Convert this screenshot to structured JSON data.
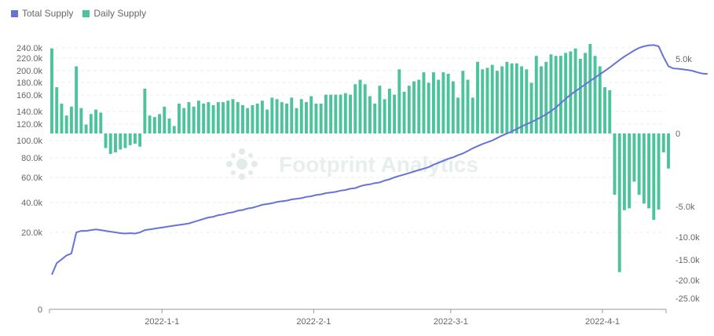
{
  "colors": {
    "total": "#6674d8",
    "daily": "#4cc39b",
    "axis": "#666666",
    "grid": "#eeeeee"
  },
  "legend": {
    "total_label": "Total Supply",
    "daily_label": "Daily Supply"
  },
  "watermark": {
    "text": "Footprint Analytics"
  },
  "chart_data": {
    "type": "bar+line",
    "x_tick_labels": [
      "2022-1-1",
      "2022-2-1",
      "2022-3-1",
      "2022-4-1"
    ],
    "x_range": [
      "2021-12-09",
      "2022-04-14"
    ],
    "left_axis": {
      "tick_labels": [
        "0",
        "20.0k",
        "40.0k",
        "60.0k",
        "80.0k",
        "100.0k",
        "120.0k",
        "140.0k",
        "160.0k",
        "180.0k",
        "200.0k",
        "220.0k",
        "240.0k"
      ],
      "tick_values": [
        0,
        20000,
        40000,
        60000,
        80000,
        100000,
        120000,
        140000,
        160000,
        180000,
        200000,
        220000,
        240000
      ],
      "scale": "non-linear (expanded near top)"
    },
    "right_axis": {
      "tick_labels": [
        "5.0k",
        "0",
        "-5.0k",
        "-10.0k",
        "-15.0k",
        "-20.0k",
        "-25.0k"
      ],
      "tick_values": [
        5000,
        0,
        -5000,
        -10000,
        -15000,
        -20000,
        -25000
      ],
      "scale": "non-linear"
    },
    "series": [
      {
        "name": "Total Supply",
        "type": "line",
        "axis": "left",
        "start_date": "2021-12-09",
        "values": [
          9000,
          12000,
          13000,
          14000,
          14500,
          20000,
          21000,
          21000,
          21500,
          22000,
          21500,
          21000,
          20500,
          20000,
          19800,
          19700,
          19800,
          19700,
          20000,
          21500,
          22000,
          22500,
          23000,
          23500,
          24000,
          24500,
          25000,
          25500,
          26000,
          27000,
          28000,
          29000,
          30000,
          30500,
          31500,
          32000,
          33000,
          33500,
          34500,
          35000,
          36000,
          36500,
          37500,
          38500,
          39000,
          39500,
          40500,
          41000,
          41500,
          42500,
          43000,
          43500,
          44500,
          45000,
          46000,
          46500,
          47500,
          48000,
          48500,
          49500,
          50000,
          51000,
          51500,
          53000,
          54000,
          54500,
          55500,
          56000,
          57500,
          58500,
          60000,
          61500,
          63000,
          64500,
          66000,
          67500,
          69000,
          70500,
          73000,
          75000,
          77000,
          79000,
          80500,
          83000,
          85000,
          88000,
          91000,
          93500,
          96000,
          98000,
          100000,
          103000,
          106000,
          108500,
          111000,
          114000,
          117000,
          120000,
          123000,
          127000,
          131000,
          135500,
          140500,
          145000,
          150000,
          155500,
          160500,
          166000,
          171500,
          177000,
          182500,
          188000,
          194000,
          199500,
          205000,
          211000,
          217000,
          223000,
          229000,
          235000,
          240000,
          243000,
          245000,
          245500,
          243000,
          222000,
          207000,
          203500,
          203000,
          202000,
          201000,
          199500,
          197000,
          195000,
          194500
        ]
      },
      {
        "name": "Daily Supply",
        "type": "bar",
        "axis": "right",
        "start_date": "2021-12-09",
        "values": [
          5700,
          3100,
          2000,
          1200,
          1800,
          4500,
          1700,
          600,
          1300,
          1600,
          1400,
          -1000,
          -1400,
          -1300,
          -1100,
          -1000,
          -800,
          -700,
          -900,
          3000,
          1200,
          1100,
          1300,
          1800,
          1000,
          500,
          2000,
          1700,
          2100,
          1800,
          2200,
          2000,
          2100,
          1900,
          2100,
          2100,
          2200,
          2300,
          2100,
          1900,
          1700,
          1900,
          2000,
          2200,
          1600,
          2400,
          2300,
          2100,
          2000,
          2400,
          1700,
          2300,
          2100,
          2500,
          2000,
          2000,
          2600,
          2600,
          2600,
          2600,
          2700,
          2600,
          3300,
          3600,
          3300,
          2500,
          2000,
          3200,
          2300,
          3000,
          2600,
          4300,
          2800,
          3200,
          3500,
          3600,
          4100,
          3400,
          4100,
          3600,
          4100,
          4000,
          3500,
          2400,
          4200,
          3600,
          2400,
          4800,
          4300,
          4400,
          4600,
          4200,
          4500,
          4800,
          4700,
          4700,
          4500,
          4300,
          3400,
          5200,
          4500,
          4800,
          5300,
          5200,
          5200,
          5400,
          5500,
          5700,
          5000,
          5400,
          6100,
          5200,
          4500,
          3100,
          2900,
          -4200,
          -18000,
          -5600,
          -5300,
          -3300,
          -4200,
          -4800,
          -5300,
          -7200,
          -5500,
          -1300,
          -2400
        ],
        "note": "bars shown from 2021-12-09 through 2022-04-12"
      }
    ],
    "grid": "horizontal dashed lines",
    "legend_position": "top-left"
  }
}
